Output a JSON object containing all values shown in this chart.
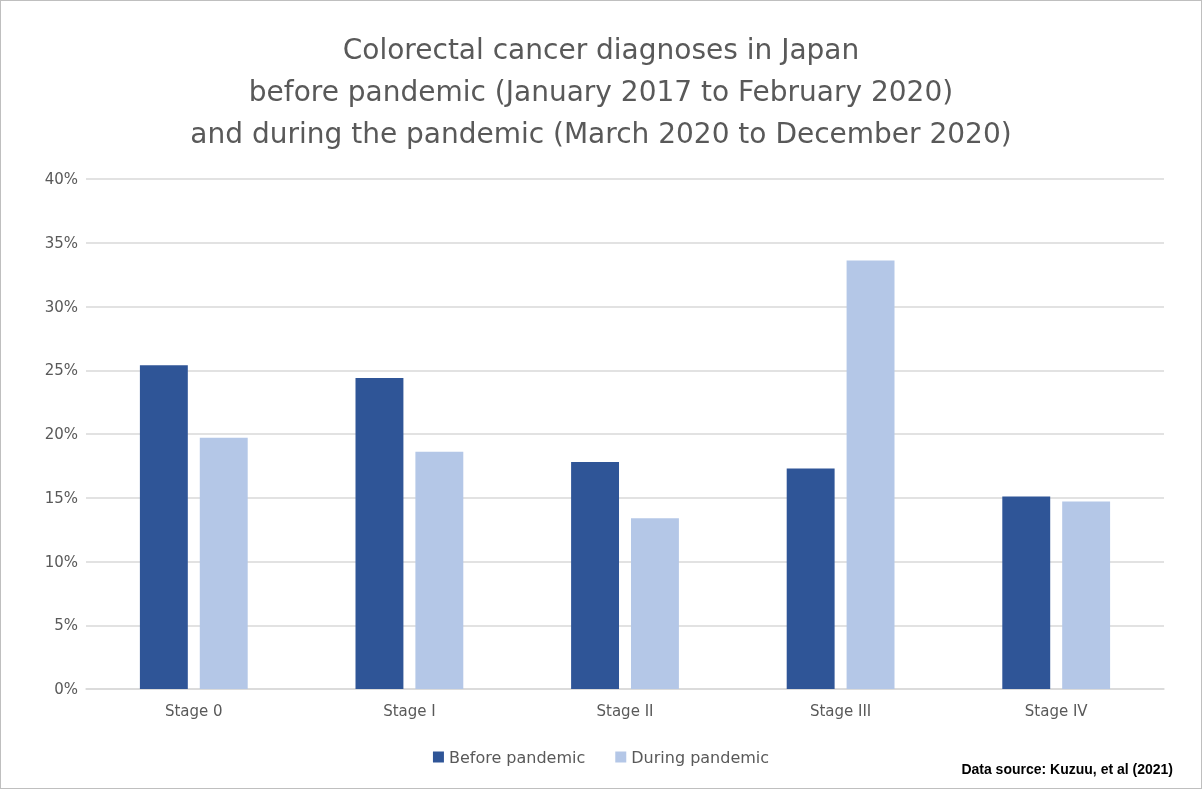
{
  "chart_data": {
    "type": "bar",
    "title": "Colorectal cancer diagnoses in Japan\nbefore pandemic (January 2017 to February 2020)\nand during the pandemic (March 2020 to December 2020)",
    "categories": [
      "Stage 0",
      "Stage I",
      "Stage II",
      "Stage III",
      "Stage IV"
    ],
    "series": [
      {
        "name": "Before pandemic",
        "color": "#2f5597",
        "values": [
          25.4,
          24.4,
          17.8,
          17.3,
          15.1
        ]
      },
      {
        "name": "During pandemic",
        "color": "#b4c7e7",
        "values": [
          19.7,
          18.6,
          13.4,
          33.6,
          14.7
        ]
      }
    ],
    "ylim": [
      0,
      40
    ],
    "yticks": [
      {
        "value": 0,
        "label": "0%"
      },
      {
        "value": 5,
        "label": "5%"
      },
      {
        "value": 10,
        "label": "10%"
      },
      {
        "value": 15,
        "label": "15%"
      },
      {
        "value": 20,
        "label": "20%"
      },
      {
        "value": 25,
        "label": "25%"
      },
      {
        "value": 30,
        "label": "30%"
      },
      {
        "value": 35,
        "label": "35%"
      },
      {
        "value": 40,
        "label": "40%"
      }
    ],
    "grid": "y",
    "legend": "bottom",
    "annotations": [
      "Data source: Kuzuu, et al (2021)"
    ]
  }
}
